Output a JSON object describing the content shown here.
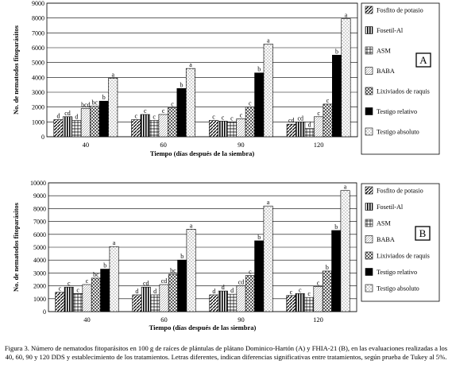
{
  "caption": "Figura 3. Número de nematodos fitoparásitos en 100 g de raíces de plántulas de plátano Dominico-Hartón (A) y FHIA-21 (B), en las evaluaciones realizadas a los 40, 60, 90 y 120 DDS y establecimiento de los tratamientos. Letras diferentes, indican diferencias significativas entre tratamientos, según prueba de Tukey al 5%.",
  "colors": {
    "Fosfito de potasio": "hatch-dark",
    "Fosetil-Al": "vertical-stripes",
    "ASM": "crosshatch",
    "BABA": "light-fine-hatch",
    "Lixiviados de raquis": "diagonal-crosshatch",
    "Testigo relativo": "#000000",
    "Testigo absoluto": "dotted-white"
  },
  "chart_data": [
    {
      "type": "bar",
      "panel_label": "A",
      "xlabel": "Tiempo (días después de la siembra)",
      "ylabel": "No. de nematodos fitoparásitos",
      "ylim": [
        0,
        9000
      ],
      "yticks": [
        "0",
        "1000",
        "2000",
        "3000",
        "4000",
        "5000",
        "6000",
        "7000",
        "8000",
        "9000"
      ],
      "grid": true,
      "legend_position": "right",
      "categories": [
        "40",
        "60",
        "90",
        "120"
      ],
      "series": [
        {
          "name": "Fosfito de potasio",
          "values": [
            1150,
            1150,
            1100,
            850
          ],
          "letters": [
            "d",
            "c",
            "c",
            "cd"
          ]
        },
        {
          "name": "Fosetil-Al",
          "values": [
            1350,
            1500,
            1050,
            1000
          ],
          "letters": [
            "cd",
            "c",
            "c",
            "cd"
          ]
        },
        {
          "name": "ASM",
          "values": [
            1100,
            1100,
            1000,
            550
          ],
          "letters": [
            "d",
            "c",
            "c",
            "d"
          ]
        },
        {
          "name": "BABA",
          "values": [
            1900,
            1500,
            1200,
            1350
          ],
          "letters": [
            "bcd",
            "c",
            "c",
            "c"
          ]
        },
        {
          "name": "Lixiviados de raquis",
          "values": [
            2050,
            1950,
            2000,
            2200
          ],
          "letters": [
            "bc",
            "c",
            "c",
            "c"
          ]
        },
        {
          "name": "Testigo relativo",
          "values": [
            2400,
            3250,
            4300,
            5500
          ],
          "letters": [
            "b",
            "b",
            "b",
            "b"
          ]
        },
        {
          "name": "Testigo absoluto",
          "values": [
            3950,
            4600,
            6250,
            7950
          ],
          "letters": [
            "a",
            "a",
            "a",
            "a"
          ]
        }
      ]
    },
    {
      "type": "bar",
      "panel_label": "B",
      "xlabel": "Tiempo (días después de las siembra)",
      "ylabel": "No. de nematodos fitoparásitos",
      "ylim": [
        0,
        10000
      ],
      "yticks": [
        "0",
        "1000",
        "2000",
        "3000",
        "4000",
        "5000",
        "6000",
        "7000",
        "8000",
        "9000",
        "10000"
      ],
      "grid": true,
      "legend_position": "right",
      "categories": [
        "40",
        "60",
        "90",
        "120"
      ],
      "series": [
        {
          "name": "Fosfito de potasio",
          "values": [
            1500,
            1300,
            1300,
            1250
          ],
          "letters": [
            "c",
            "d",
            "d",
            "c"
          ]
        },
        {
          "name": "Fosetil-Al",
          "values": [
            1900,
            1900,
            1600,
            1400
          ],
          "letters": [
            "c",
            "cd",
            "d",
            "c"
          ]
        },
        {
          "name": "ASM",
          "values": [
            1400,
            1300,
            1350,
            1100
          ],
          "letters": [
            "c",
            "d",
            "d",
            "c"
          ]
        },
        {
          "name": "BABA",
          "values": [
            2100,
            2100,
            2000,
            1950
          ],
          "letters": [
            "c",
            "cd",
            "cd",
            "c"
          ]
        },
        {
          "name": "Lixiviados de raquis",
          "values": [
            2600,
            2900,
            2800,
            3150
          ],
          "letters": [
            "bc",
            "bc",
            "c",
            "b"
          ]
        },
        {
          "name": "Testigo relativo",
          "values": [
            3300,
            4000,
            5500,
            6300
          ],
          "letters": [
            "b",
            "b",
            "b",
            "b"
          ]
        },
        {
          "name": "Testigo absoluto",
          "values": [
            5050,
            6400,
            8200,
            9400
          ],
          "letters": [
            "a",
            "a",
            "a",
            "a"
          ]
        }
      ]
    }
  ]
}
